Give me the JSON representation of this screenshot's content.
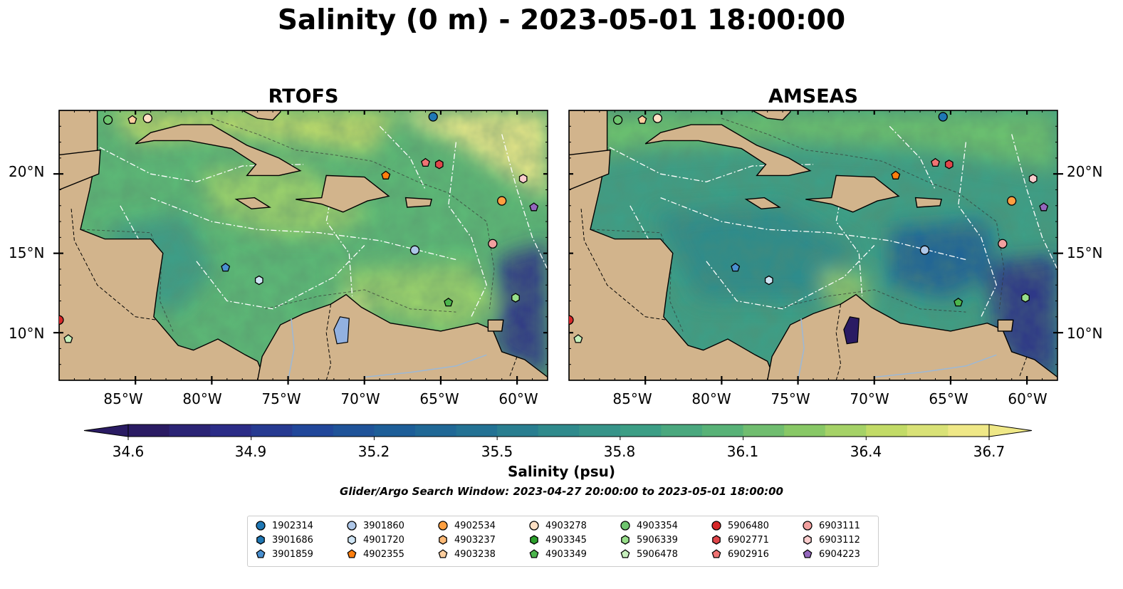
{
  "title": "Salinity (0 m) - 2023-05-01 18:00:00",
  "panels": [
    {
      "title": "RTOFS"
    },
    {
      "title": "AMSEAS"
    }
  ],
  "lat_labels": [
    "20°N",
    "15°N",
    "10°N"
  ],
  "lon_labels": [
    "85°W",
    "80°W",
    "75°W",
    "70°W",
    "65°W",
    "60°W"
  ],
  "colorbar": {
    "label": "Salinity (psu)",
    "min": 34.6,
    "max": 36.7,
    "ticks": [
      "34.6",
      "34.9",
      "35.2",
      "35.5",
      "35.8",
      "36.1",
      "36.4",
      "36.7"
    ],
    "colors": [
      "#2a1b63",
      "#2b2c87",
      "#21479a",
      "#1d5e98",
      "#237294",
      "#2f8a8c",
      "#3c9e85",
      "#58b277",
      "#88c866",
      "#c2db67",
      "#efe887"
    ]
  },
  "search_window": "Glider/Argo Search Window: 2023-04-27 20:00:00 to 2023-05-01 18:00:00",
  "legend": [
    {
      "id": "1902314",
      "marker": "circle",
      "color": "#1f77b4"
    },
    {
      "id": "3901686",
      "marker": "hexagon",
      "color": "#1f77b4"
    },
    {
      "id": "3901859",
      "marker": "pentagon",
      "color": "#4a90d0"
    },
    {
      "id": "3901860",
      "marker": "circle",
      "color": "#aec7e8"
    },
    {
      "id": "4901720",
      "marker": "hexagon",
      "color": "#cfe5f5"
    },
    {
      "id": "4902355",
      "marker": "pentagon",
      "color": "#ff7f0e"
    },
    {
      "id": "4902534",
      "marker": "circle",
      "color": "#ff9f40"
    },
    {
      "id": "4903237",
      "marker": "hexagon",
      "color": "#ffbb78"
    },
    {
      "id": "4903238",
      "marker": "pentagon",
      "color": "#ffcf9f"
    },
    {
      "id": "4903278",
      "marker": "circle",
      "color": "#ffe0c4"
    },
    {
      "id": "4903345",
      "marker": "hexagon",
      "color": "#2ca02c"
    },
    {
      "id": "4903349",
      "marker": "pentagon",
      "color": "#4cb54c"
    },
    {
      "id": "4903354",
      "marker": "circle",
      "color": "#6fc56f"
    },
    {
      "id": "5906339",
      "marker": "hexagon",
      "color": "#98df8a"
    },
    {
      "id": "5906478",
      "marker": "pentagon",
      "color": "#c7f0bd"
    },
    {
      "id": "5906480",
      "marker": "circle",
      "color": "#d62728"
    },
    {
      "id": "6902771",
      "marker": "hexagon",
      "color": "#e0464a"
    },
    {
      "id": "6902916",
      "marker": "pentagon",
      "color": "#ef7373"
    },
    {
      "id": "6903111",
      "marker": "circle",
      "color": "#f2a09f"
    },
    {
      "id": "6903112",
      "marker": "hexagon",
      "color": "#fbcdcd"
    },
    {
      "id": "6904223",
      "marker": "pentagon",
      "color": "#9467bd"
    }
  ],
  "floats_on_map": [
    {
      "id": "1902314",
      "lon": -65.5,
      "lat": 23.6
    },
    {
      "id": "4903354",
      "lon": -86.8,
      "lat": 23.4
    },
    {
      "id": "4903238",
      "lon": -85.2,
      "lat": 23.4
    },
    {
      "id": "4903278",
      "lon": -84.2,
      "lat": 23.5
    },
    {
      "id": "6902916",
      "lon": -66.0,
      "lat": 20.7
    },
    {
      "id": "6902771",
      "lon": -65.1,
      "lat": 20.6
    },
    {
      "id": "4902355",
      "lon": -68.6,
      "lat": 19.9
    },
    {
      "id": "6903112",
      "lon": -59.6,
      "lat": 19.7
    },
    {
      "id": "4902534",
      "lon": -61.0,
      "lat": 18.3
    },
    {
      "id": "6904223",
      "lon": -58.9,
      "lat": 17.9
    },
    {
      "id": "3901860",
      "lon": -66.7,
      "lat": 15.2
    },
    {
      "id": "6903111",
      "lon": -61.6,
      "lat": 15.6
    },
    {
      "id": "3901859",
      "lon": -79.1,
      "lat": 14.1
    },
    {
      "id": "4901720",
      "lon": -76.9,
      "lat": 13.3
    },
    {
      "id": "5906339",
      "lon": -60.1,
      "lat": 12.2
    },
    {
      "id": "4903349",
      "lon": -64.5,
      "lat": 11.9
    },
    {
      "id": "5906480",
      "lon": -90.0,
      "lat": 10.8
    },
    {
      "id": "5906478",
      "lon": -89.4,
      "lat": 9.6
    }
  ]
}
